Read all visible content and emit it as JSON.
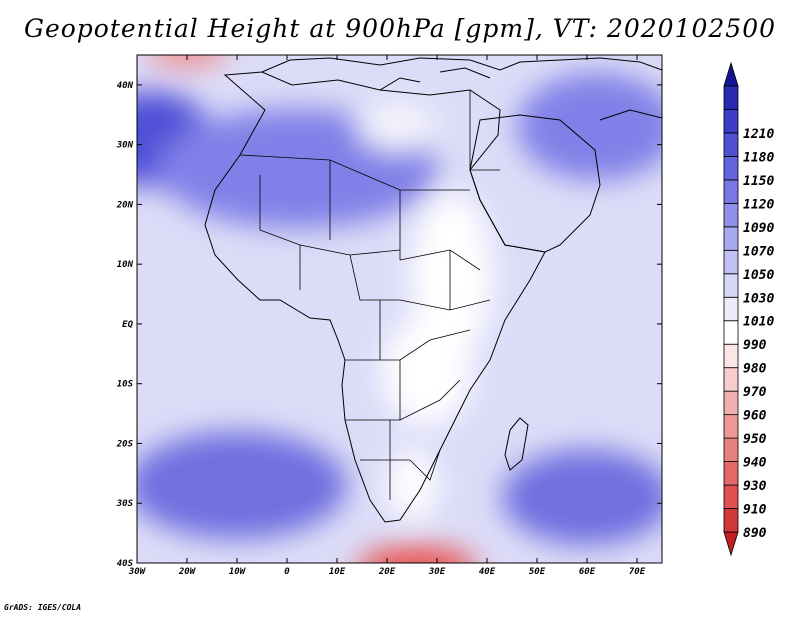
{
  "title": "Geopotential Height at 900hPa [gpm], VT: 2020102500",
  "credit": "GrADS: IGES/COLA",
  "map": {
    "type": "filled-contour",
    "lon_range": [
      -30,
      75
    ],
    "lat_range": [
      -40,
      45
    ],
    "lon_ticks": [
      {
        "value": -30,
        "label": "30W"
      },
      {
        "value": -20,
        "label": "20W"
      },
      {
        "value": -10,
        "label": "10W"
      },
      {
        "value": 0,
        "label": "0"
      },
      {
        "value": 10,
        "label": "10E"
      },
      {
        "value": 20,
        "label": "20E"
      },
      {
        "value": 30,
        "label": "30E"
      },
      {
        "value": 40,
        "label": "40E"
      },
      {
        "value": 50,
        "label": "50E"
      },
      {
        "value": 60,
        "label": "60E"
      },
      {
        "value": 70,
        "label": "70E"
      }
    ],
    "lat_ticks": [
      {
        "value": 40,
        "label": "40N"
      },
      {
        "value": 30,
        "label": "30N"
      },
      {
        "value": 20,
        "label": "20N"
      },
      {
        "value": 10,
        "label": "10N"
      },
      {
        "value": 0,
        "label": "EQ"
      },
      {
        "value": -10,
        "label": "10S"
      },
      {
        "value": -20,
        "label": "20S"
      },
      {
        "value": -30,
        "label": "30S"
      },
      {
        "value": -40,
        "label": "40S"
      }
    ],
    "background_color": "#dcdcf8",
    "features": [
      {
        "name": "nw-atlantic-high",
        "lon": -27,
        "lat": 31,
        "rx": 12,
        "ry": 8,
        "color": "#5050d8"
      },
      {
        "name": "sahara-high",
        "lon": 2,
        "lat": 26,
        "rx": 28,
        "ry": 10,
        "color": "#8080e8"
      },
      {
        "name": "arabia-iran-high",
        "lon": 62,
        "lat": 33,
        "rx": 16,
        "ry": 9,
        "color": "#8080e8"
      },
      {
        "name": "s-atlantic-high",
        "lon": -10,
        "lat": -27,
        "rx": 22,
        "ry": 9,
        "color": "#7070e0"
      },
      {
        "name": "s-indian-high",
        "lon": 60,
        "lat": -29,
        "rx": 17,
        "ry": 8,
        "color": "#7070e0"
      },
      {
        "name": "mediterranean-low",
        "lon": 22,
        "lat": 33,
        "rx": 8,
        "ry": 4,
        "color": "#f4f4fc"
      },
      {
        "name": "east-africa-low",
        "lon": 33,
        "lat": 8,
        "rx": 8,
        "ry": 14,
        "color": "#ffffff"
      },
      {
        "name": "central-africa-low",
        "lon": 28,
        "lat": -8,
        "rx": 9,
        "ry": 9,
        "color": "#ffffff"
      },
      {
        "name": "south-africa-low",
        "lon": 25,
        "lat": -27,
        "rx": 5,
        "ry": 6,
        "color": "#ffffff"
      },
      {
        "name": "s-ocean-low",
        "lon": 26,
        "lat": -41,
        "rx": 12,
        "ry": 4,
        "color": "#e85858"
      },
      {
        "name": "n-atlantic-low",
        "lon": -20,
        "lat": 46,
        "rx": 8,
        "ry": 3,
        "color": "#f09090"
      }
    ]
  },
  "colorbar": {
    "colors": [
      "#c02020",
      "#d03838",
      "#e05050",
      "#e46a6a",
      "#e88080",
      "#ec9898",
      "#f0b0b0",
      "#f6cccc",
      "#fce6e6",
      "#ffffff",
      "#ececfc",
      "#d8d8f6",
      "#c0c0f2",
      "#a8a8ee",
      "#9090ea",
      "#7878e2",
      "#6464dc",
      "#5050d2",
      "#3c3cc6",
      "#2828b0",
      "#141496"
    ],
    "labels": [
      "890",
      "910",
      "930",
      "940",
      "950",
      "960",
      "970",
      "980",
      "990",
      "1010",
      "1030",
      "1050",
      "1070",
      "1090",
      "1120",
      "1150",
      "1180",
      "1210"
    ]
  }
}
